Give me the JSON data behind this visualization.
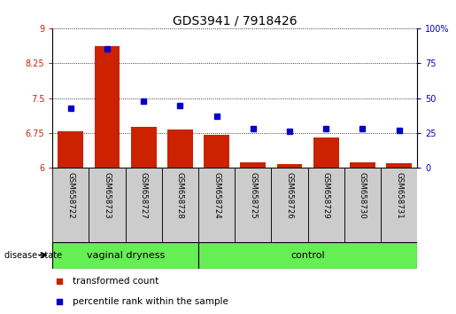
{
  "title": "GDS3941 / 7918426",
  "samples": [
    "GSM658722",
    "GSM658723",
    "GSM658727",
    "GSM658728",
    "GSM658724",
    "GSM658725",
    "GSM658726",
    "GSM658729",
    "GSM658730",
    "GSM658731"
  ],
  "red_values": [
    6.78,
    8.62,
    6.88,
    6.82,
    6.72,
    6.13,
    6.08,
    6.65,
    6.12,
    6.1
  ],
  "blue_values_pct": [
    43,
    85,
    48,
    45,
    37,
    28,
    26,
    28,
    28,
    27
  ],
  "ylim_left": [
    6,
    9
  ],
  "ylim_right": [
    0,
    100
  ],
  "yticks_left": [
    6,
    6.75,
    7.5,
    8.25,
    9
  ],
  "yticks_right": [
    0,
    25,
    50,
    75,
    100
  ],
  "groups": [
    {
      "label": "vaginal dryness",
      "start": 0,
      "end": 3
    },
    {
      "label": "control",
      "start": 4,
      "end": 9
    }
  ],
  "group_color": "#66ee55",
  "bar_color": "#cc2200",
  "dot_color": "#0000cc",
  "label_bg_color": "#cccccc",
  "spine_color": "#000000",
  "grid_color": "#000000",
  "tick_fontsize": 7,
  "title_fontsize": 10,
  "legend_items": [
    "transformed count",
    "percentile rank within the sample"
  ],
  "ytick_left_labels": [
    "6",
    "6.75",
    "7.5",
    "8.25",
    "9"
  ],
  "ytick_right_labels": [
    "0",
    "25",
    "50",
    "75",
    "100%"
  ],
  "disease_state_label": "disease state"
}
